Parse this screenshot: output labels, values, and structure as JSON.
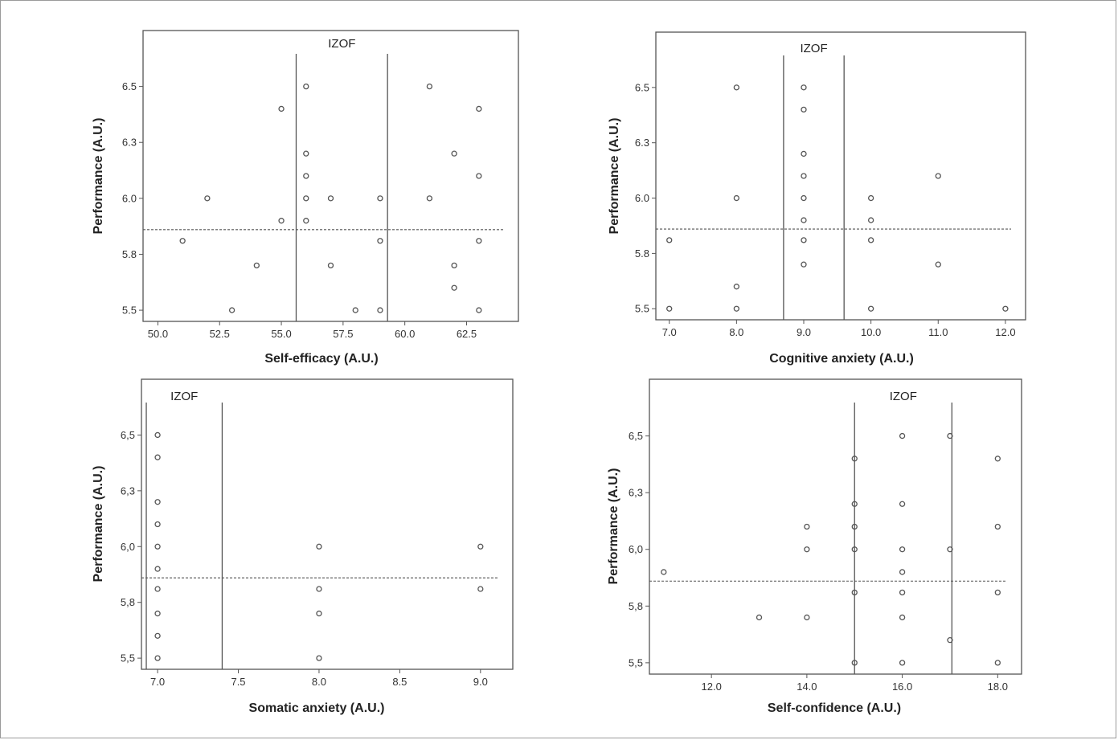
{
  "chart_data": [
    {
      "type": "scatter",
      "title": "",
      "xlabel": "Self-efficacy (A.U.)",
      "ylabel": "Performance (A.U.)",
      "xlim": [
        49.4,
        64.6
      ],
      "ylim": [
        5.45,
        6.75
      ],
      "x_ticks": [
        50.0,
        52.5,
        55.0,
        57.5,
        60.0,
        62.5
      ],
      "x_tick_labels": [
        "50.0",
        "52.5",
        "55.0",
        "57.5",
        "60.0",
        "62.5"
      ],
      "y_ticks": [
        5.5,
        5.75,
        6.0,
        6.25,
        6.5
      ],
      "y_tick_labels": [
        "5.5",
        "5.8",
        "6.0",
        "6.3",
        "6.5"
      ],
      "zone_label": "IZOF",
      "zone_bounds": [
        55.6,
        59.3
      ],
      "reference_line_y": 5.86,
      "points": [
        [
          51,
          5.81
        ],
        [
          52,
          6.0
        ],
        [
          53,
          5.5
        ],
        [
          54,
          5.7
        ],
        [
          55,
          6.4
        ],
        [
          55,
          5.9
        ],
        [
          56,
          6.5
        ],
        [
          56,
          6.2
        ],
        [
          56,
          6.1
        ],
        [
          56,
          6.0
        ],
        [
          56,
          5.9
        ],
        [
          57,
          6.0
        ],
        [
          57,
          5.7
        ],
        [
          58,
          5.5
        ],
        [
          59,
          6.0
        ],
        [
          59,
          5.81
        ],
        [
          59,
          5.5
        ],
        [
          61,
          6.5
        ],
        [
          61,
          6.0
        ],
        [
          62,
          6.2
        ],
        [
          62,
          5.7
        ],
        [
          62,
          5.6
        ],
        [
          63,
          6.4
        ],
        [
          63,
          6.1
        ],
        [
          63,
          5.81
        ],
        [
          63,
          5.5
        ]
      ],
      "grid": false,
      "marker_color": "#555555"
    },
    {
      "type": "scatter",
      "title": "",
      "xlabel": "Cognitive anxiety (A.U.)",
      "ylabel": "Performance (A.U.)",
      "xlim": [
        6.8,
        12.3
      ],
      "ylim": [
        5.45,
        6.75
      ],
      "x_ticks": [
        7,
        8,
        9,
        10,
        11,
        12
      ],
      "x_tick_labels": [
        "7.0",
        "8.0",
        "9.0",
        "10.0",
        "11.0",
        "12.0"
      ],
      "y_ticks": [
        5.5,
        5.75,
        6.0,
        6.25,
        6.5
      ],
      "y_tick_labels": [
        "5.5",
        "5.8",
        "6.0",
        "6.3",
        "6.5"
      ],
      "zone_label": "IZOF",
      "zone_bounds": [
        8.7,
        9.6
      ],
      "reference_line_y": 5.86,
      "points": [
        [
          7,
          5.81
        ],
        [
          7,
          5.5
        ],
        [
          8,
          6.5
        ],
        [
          8,
          6.0
        ],
        [
          8,
          5.6
        ],
        [
          8,
          5.5
        ],
        [
          9,
          6.5
        ],
        [
          9,
          6.4
        ],
        [
          9,
          6.2
        ],
        [
          9,
          6.1
        ],
        [
          9,
          6.0
        ],
        [
          9,
          5.9
        ],
        [
          9,
          5.81
        ],
        [
          9,
          5.7
        ],
        [
          10,
          6.0
        ],
        [
          10,
          5.9
        ],
        [
          10,
          5.81
        ],
        [
          10,
          5.5
        ],
        [
          11,
          6.1
        ],
        [
          11,
          5.7
        ],
        [
          12,
          5.5
        ]
      ],
      "grid": false,
      "marker_color": "#555555"
    },
    {
      "type": "scatter",
      "title": "",
      "xlabel": "Somatic anxiety (A.U.)",
      "ylabel": "Performance (A.U.)",
      "xlim": [
        6.9,
        9.2
      ],
      "ylim": [
        5.45,
        6.75
      ],
      "x_ticks": [
        7.0,
        7.5,
        8.0,
        8.5,
        9.0
      ],
      "x_tick_labels": [
        "7.0",
        "7.5",
        "8.0",
        "8.5",
        "9.0"
      ],
      "y_ticks": [
        5.5,
        5.75,
        6.0,
        6.25,
        6.5
      ],
      "y_tick_labels": [
        "5,5",
        "5,8",
        "6,0",
        "6,3",
        "6,5"
      ],
      "zone_label": "IZOF",
      "zone_bounds": [
        6.93,
        7.4
      ],
      "reference_line_y": 5.86,
      "points": [
        [
          7,
          6.5
        ],
        [
          7,
          6.4
        ],
        [
          7,
          6.2
        ],
        [
          7,
          6.1
        ],
        [
          7,
          6.0
        ],
        [
          7,
          5.9
        ],
        [
          7,
          5.81
        ],
        [
          7,
          5.7
        ],
        [
          7,
          5.6
        ],
        [
          7,
          5.5
        ],
        [
          8,
          6.0
        ],
        [
          8,
          5.81
        ],
        [
          8,
          5.7
        ],
        [
          8,
          5.5
        ],
        [
          9,
          6.0
        ],
        [
          9,
          5.81
        ]
      ],
      "grid": false,
      "marker_color": "#555555"
    },
    {
      "type": "scatter",
      "title": "",
      "xlabel": "Self-confidence (A.U.)",
      "ylabel": "Performance (A.U.)",
      "xlim": [
        10.7,
        18.5
      ],
      "ylim": [
        5.45,
        6.75
      ],
      "x_ticks": [
        12,
        14,
        16,
        18
      ],
      "x_tick_labels": [
        "12.0",
        "14.0",
        "16.0",
        "18.0"
      ],
      "y_ticks": [
        5.5,
        5.75,
        6.0,
        6.25,
        6.5
      ],
      "y_tick_labels": [
        "5,5",
        "5,8",
        "6,0",
        "6,3",
        "6,5"
      ],
      "zone_label": "IZOF",
      "zone_bounds": [
        15.0,
        17.04
      ],
      "reference_line_y": 5.86,
      "points": [
        [
          11,
          5.9
        ],
        [
          13,
          5.7
        ],
        [
          14,
          6.1
        ],
        [
          14,
          6.0
        ],
        [
          14,
          5.7
        ],
        [
          15,
          6.4
        ],
        [
          15,
          6.2
        ],
        [
          15,
          6.1
        ],
        [
          15,
          6.0
        ],
        [
          15,
          5.81
        ],
        [
          15,
          5.5
        ],
        [
          16,
          6.5
        ],
        [
          16,
          6.2
        ],
        [
          16,
          6.0
        ],
        [
          16,
          5.9
        ],
        [
          16,
          5.81
        ],
        [
          16,
          5.7
        ],
        [
          16,
          5.5
        ],
        [
          17,
          6.5
        ],
        [
          17,
          6.0
        ],
        [
          17,
          5.6
        ],
        [
          18,
          6.4
        ],
        [
          18,
          6.1
        ],
        [
          18,
          5.81
        ],
        [
          18,
          5.5
        ]
      ],
      "grid": false,
      "marker_color": "#555555"
    }
  ]
}
